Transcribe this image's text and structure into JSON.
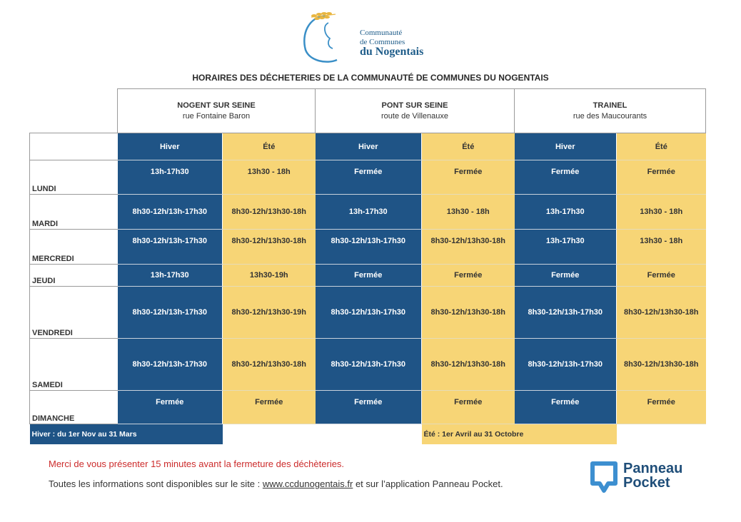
{
  "logo": {
    "line1": "Communauté",
    "line2": "de Communes",
    "line3": "du Nogentais"
  },
  "title": "HORAIRES DES DÉCHETERIES DE LA COMMUNAUTÉ DE COMMUNES DU NOGENTAIS",
  "sites": [
    {
      "name": "NOGENT SUR SEINE",
      "address": "rue Fontaine Baron"
    },
    {
      "name": "PONT SUR SEINE",
      "address": "route de Villenauxe"
    },
    {
      "name": "TRAINEL",
      "address": "rue des Maucourants"
    }
  ],
  "seasons": {
    "winter": "Hiver",
    "summer": "Été"
  },
  "days": [
    {
      "name": "LUNDI",
      "hours": [
        "13h-17h30",
        "13h30 - 18h",
        "Fermée",
        "Fermée",
        "Fermée",
        "Fermée"
      ]
    },
    {
      "name": "MARDI",
      "hours": [
        "8h30-12h/13h-17h30",
        "8h30-12h/13h30-18h",
        "13h-17h30",
        "13h30 - 18h",
        "13h-17h30",
        "13h30 - 18h"
      ]
    },
    {
      "name": "MERCREDI",
      "hours": [
        "8h30-12h/13h-17h30",
        "8h30-12h/13h30-18h",
        "8h30-12h/13h-17h30",
        "8h30-12h/13h30-18h",
        "13h-17h30",
        "13h30 - 18h"
      ]
    },
    {
      "name": "JEUDI",
      "hours": [
        "13h-17h30",
        "13h30-19h",
        "Fermée",
        "Fermée",
        "Fermée",
        "Fermée"
      ]
    },
    {
      "name": "VENDREDI",
      "hours": [
        "8h30-12h/13h-17h30",
        "8h30-12h/13h30-19h",
        "8h30-12h/13h-17h30",
        "8h30-12h/13h30-18h",
        "8h30-12h/13h-17h30",
        "8h30-12h/13h30-18h"
      ]
    },
    {
      "name": "SAMEDI",
      "hours": [
        "8h30-12h/13h-17h30",
        "8h30-12h/13h30-18h",
        "8h30-12h/13h-17h30",
        "8h30-12h/13h30-18h",
        "8h30-12h/13h-17h30",
        "8h30-12h/13h30-18h"
      ]
    },
    {
      "name": "DIMANCHE",
      "hours": [
        "Fermée",
        "Fermée",
        "Fermée",
        "Fermée",
        "Fermée",
        "Fermée"
      ]
    }
  ],
  "footnotes": {
    "winter": "Hiver : du 1er Nov au 31 Mars",
    "summer": "Été : 1er Avril au 31 Octobre"
  },
  "notice": "Merci de vous présenter 15 minutes avant la fermeture des déchèteries.",
  "info": {
    "before": "Toutes les informations sont disponibles sur le site : ",
    "link": "www.ccdunogentais.fr",
    "after": " et sur l’application Panneau Pocket."
  },
  "panneau_pocket": {
    "line1": "Panneau",
    "line2": "Pocket"
  },
  "colors": {
    "winter": "#1f5486",
    "summer": "#f7d576",
    "notice": "#cc2b2b",
    "brand": "#1f5d8a"
  }
}
